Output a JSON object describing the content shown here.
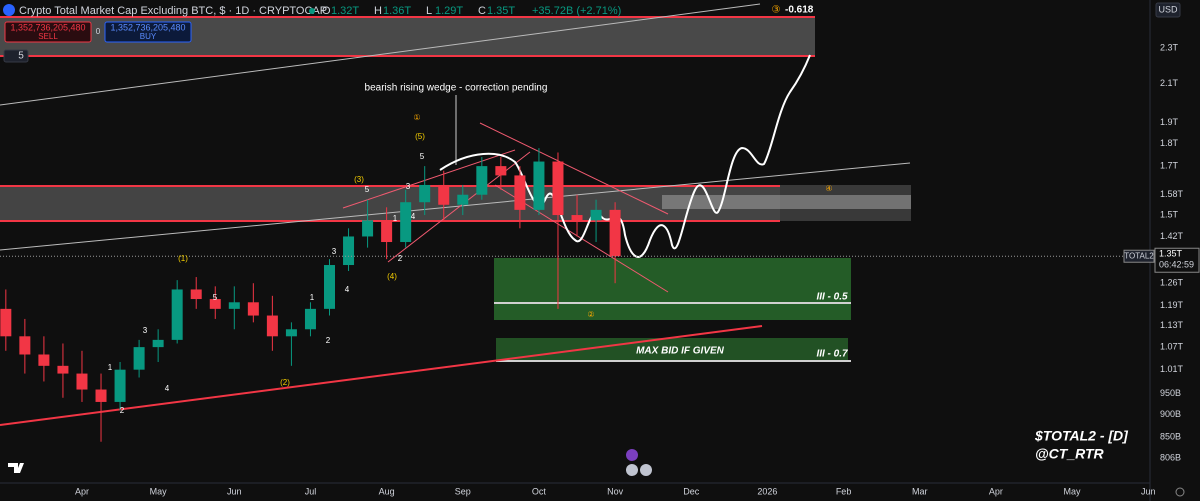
{
  "header": {
    "title": "Crypto Total Market Cap Excluding BTC, $ · 1D · CRYPTOCAP",
    "ohlc": [
      {
        "key": "O",
        "val": "1.32T"
      },
      {
        "key": "H",
        "val": "1.36T"
      },
      {
        "key": "L",
        "val": "1.29T"
      },
      {
        "key": "C",
        "val": "1.35T"
      }
    ],
    "change": "+35.72B (+2.71%)",
    "sell_price": "1,352,736,205,480",
    "sell_label": "SELL",
    "spread": "0",
    "buy_price": "1,352,736,205,480",
    "buy_label": "BUY",
    "indicators": "5",
    "currency": "USD",
    "fib_marker": "③",
    "fib_value": "-0.618"
  },
  "chart_data": {
    "type": "candlestick",
    "log_scale": true,
    "up_color": "#089981",
    "down_color": "#f23645",
    "categories": [
      null,
      null,
      null,
      null,
      "Apr",
      null,
      null,
      null,
      "May",
      null,
      null,
      null,
      "Jun",
      null,
      null,
      null,
      "Jul",
      null,
      null,
      null,
      "Aug",
      null,
      null,
      null,
      "Sep",
      null,
      null,
      null,
      "Oct",
      null,
      null,
      null,
      "Nov",
      null,
      null,
      null,
      "Dec",
      null,
      null,
      null,
      "2026",
      null,
      null,
      null,
      "Feb",
      null,
      null,
      null,
      "Mar",
      null,
      null,
      null,
      "Apr",
      null,
      null,
      null,
      "May",
      null,
      null,
      null,
      "Jun"
    ],
    "open": [
      1.18,
      1.1,
      1.05,
      1.02,
      1.0,
      0.96,
      0.93,
      1.01,
      1.07,
      1.09,
      1.24,
      1.21,
      1.18,
      1.2,
      1.16,
      1.1,
      1.12,
      1.18,
      1.32,
      1.42,
      1.48,
      1.4,
      1.55,
      1.62,
      1.54,
      1.58,
      1.7,
      1.66,
      1.52,
      1.72,
      1.5,
      1.48,
      1.52,
      null,
      null,
      null,
      null,
      null,
      null,
      null,
      null,
      null,
      null,
      null,
      null,
      null,
      null,
      null,
      null,
      null,
      null,
      null,
      null,
      null,
      null,
      null,
      null,
      null,
      null,
      null,
      null
    ],
    "high": [
      1.24,
      1.15,
      1.1,
      1.08,
      1.06,
      1.0,
      1.03,
      1.09,
      1.12,
      1.27,
      1.28,
      1.25,
      1.25,
      1.26,
      1.22,
      1.14,
      1.2,
      1.34,
      1.45,
      1.56,
      1.53,
      1.6,
      1.7,
      1.68,
      1.62,
      1.74,
      1.74,
      1.7,
      1.78,
      1.76,
      1.58,
      1.56,
      1.55,
      null,
      null,
      null,
      null,
      null,
      null,
      null,
      null,
      null,
      null,
      null,
      null,
      null,
      null,
      null,
      null,
      null,
      null,
      null,
      null,
      null,
      null,
      null,
      null,
      null,
      null,
      null,
      null
    ],
    "low": [
      1.06,
      1.0,
      0.98,
      0.94,
      0.93,
      0.84,
      0.91,
      0.99,
      1.03,
      1.08,
      1.18,
      1.15,
      1.12,
      1.14,
      1.06,
      1.02,
      1.1,
      1.16,
      1.3,
      1.38,
      1.34,
      1.38,
      1.5,
      1.48,
      1.5,
      1.56,
      1.6,
      1.45,
      1.5,
      1.18,
      1.42,
      1.4,
      1.26,
      null,
      null,
      null,
      null,
      null,
      null,
      null,
      null,
      null,
      null,
      null,
      null,
      null,
      null,
      null,
      null,
      null,
      null,
      null,
      null,
      null,
      null,
      null,
      null,
      null,
      null,
      null,
      null
    ],
    "close": [
      1.1,
      1.05,
      1.02,
      1.0,
      0.96,
      0.93,
      1.01,
      1.07,
      1.09,
      1.24,
      1.21,
      1.18,
      1.2,
      1.16,
      1.1,
      1.12,
      1.18,
      1.32,
      1.42,
      1.48,
      1.4,
      1.55,
      1.62,
      1.54,
      1.58,
      1.7,
      1.66,
      1.52,
      1.72,
      1.5,
      1.48,
      1.52,
      1.35,
      null,
      null,
      null,
      null,
      null,
      null,
      null,
      null,
      null,
      null,
      null,
      null,
      null,
      null,
      null,
      null,
      null,
      null,
      null,
      null,
      null,
      null,
      null,
      null,
      null,
      null,
      null,
      null
    ],
    "ylim": [
      0.752,
      2.6
    ],
    "yticks": [
      {
        "value": 2.3,
        "label": "2.3T"
      },
      {
        "value": 2.1,
        "label": "2.1T"
      },
      {
        "value": 1.9,
        "label": "1.9T"
      },
      {
        "value": 1.8,
        "label": "1.8T"
      },
      {
        "value": 1.7,
        "label": "1.7T"
      },
      {
        "value": 1.58,
        "label": "1.58T"
      },
      {
        "value": 1.5,
        "label": "1.5T"
      },
      {
        "value": 1.42,
        "label": "1.42T"
      },
      {
        "value": 1.26,
        "label": "1.26T"
      },
      {
        "value": 1.19,
        "label": "1.19T"
      },
      {
        "value": 1.13,
        "label": "1.13T"
      },
      {
        "value": 1.07,
        "label": "1.07T"
      },
      {
        "value": 1.01,
        "label": "1.01T"
      },
      {
        "value": 0.95,
        "label": "950B"
      },
      {
        "value": 0.9,
        "label": "900B"
      },
      {
        "value": 0.85,
        "label": "850B"
      },
      {
        "value": 0.806,
        "label": "806B"
      }
    ],
    "last_price": {
      "symbol": "TOTAL2",
      "value": 1.35,
      "label": "1.35T",
      "countdown": "06:42:59"
    },
    "annotations": [
      "bearish rising wedge - correction pending",
      "(1)",
      "(2)",
      "(3)",
      "(4)",
      "(5)",
      "1",
      "2",
      "3",
      "4",
      "5",
      "1",
      "2",
      "3",
      "4",
      "5",
      "1",
      "2",
      "3",
      "4",
      "5",
      "①",
      "②",
      "④",
      "MAX BID IF GIVEN",
      "III - 0.5",
      "III - 0.7"
    ],
    "watermark": [
      "$TOTAL2 - [D]",
      "@CT_RTR"
    ]
  }
}
